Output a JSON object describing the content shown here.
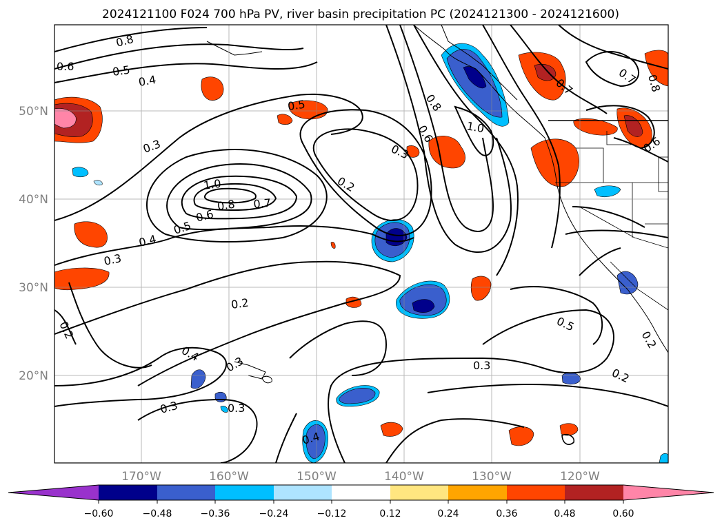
{
  "title": "2024121100 F024 700 hPa PV, river basin precipitation PC (2024121300 - 2024121600)",
  "lat_labels": [
    "50°N",
    "40°N",
    "30°N",
    "20°N"
  ],
  "lon_labels": [
    "170°W",
    "160°W",
    "150°W",
    "140°W",
    "130°W",
    "120°W"
  ],
  "colorbar": {
    "ticks": [
      "−0.60",
      "−0.48",
      "−0.36",
      "−0.24",
      "−0.12",
      "0.12",
      "0.24",
      "0.36",
      "0.48",
      "0.60"
    ],
    "colors": [
      "#9932cc",
      "#00008b",
      "#3a5fcd",
      "#00bfff",
      "#aee4ff",
      "#ffffff",
      "#ffe680",
      "#ffa500",
      "#ff4500",
      "#b22222",
      "#ff85a8"
    ]
  },
  "contour_labels": [
    "0.8",
    "0.6",
    "0.5",
    "0.4",
    "0.3",
    "1.0",
    "0.8",
    "0.7",
    "0.6",
    "0.5",
    "0.4",
    "0.3",
    "0.5",
    "0.2",
    "0.3",
    "0.8",
    "0.6",
    "1.0",
    "0.7",
    "0.8",
    "0.7",
    "0.6",
    "0.2",
    "0.2",
    "0.4",
    "0.3",
    "0.3",
    "0.3",
    "0.4",
    "0.5",
    "0.3",
    "0.2",
    "0.2"
  ]
}
